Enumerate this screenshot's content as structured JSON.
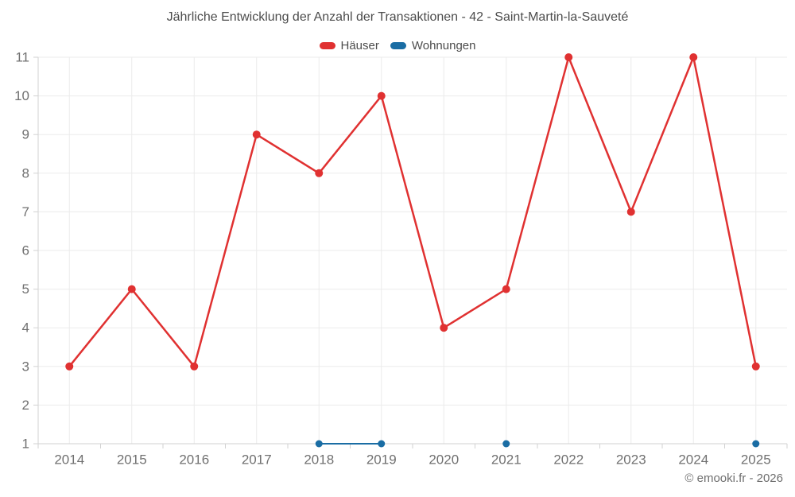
{
  "title": "Jährliche Entwicklung der Anzahl der Transaktionen - 42 - Saint-Martin-la-Sauveté",
  "footer": {
    "copyright": "© emooki.fr - 2026"
  },
  "chart_data": {
    "type": "line",
    "title": "Jährliche Entwicklung der Anzahl der Transaktionen - 42 - Saint-Martin-la-Sauveté",
    "categories": [
      "2014",
      "2015",
      "2016",
      "2017",
      "2018",
      "2019",
      "2020",
      "2021",
      "2022",
      "2023",
      "2024",
      "2025"
    ],
    "series": [
      {
        "name": "Häuser",
        "color": "#e03131",
        "values": [
          3,
          5,
          3,
          9,
          8,
          10,
          4,
          5,
          11,
          7,
          11,
          3
        ]
      },
      {
        "name": "Wohnungen",
        "color": "#1a6da4",
        "values": [
          null,
          null,
          null,
          null,
          1,
          1,
          null,
          1,
          null,
          null,
          null,
          1
        ]
      }
    ],
    "xlabel": "",
    "ylabel": "",
    "ylim": [
      1,
      11
    ],
    "yticks": [
      1,
      2,
      3,
      4,
      5,
      6,
      7,
      8,
      9,
      10,
      11
    ],
    "grid": true,
    "legend_position": "top"
  }
}
